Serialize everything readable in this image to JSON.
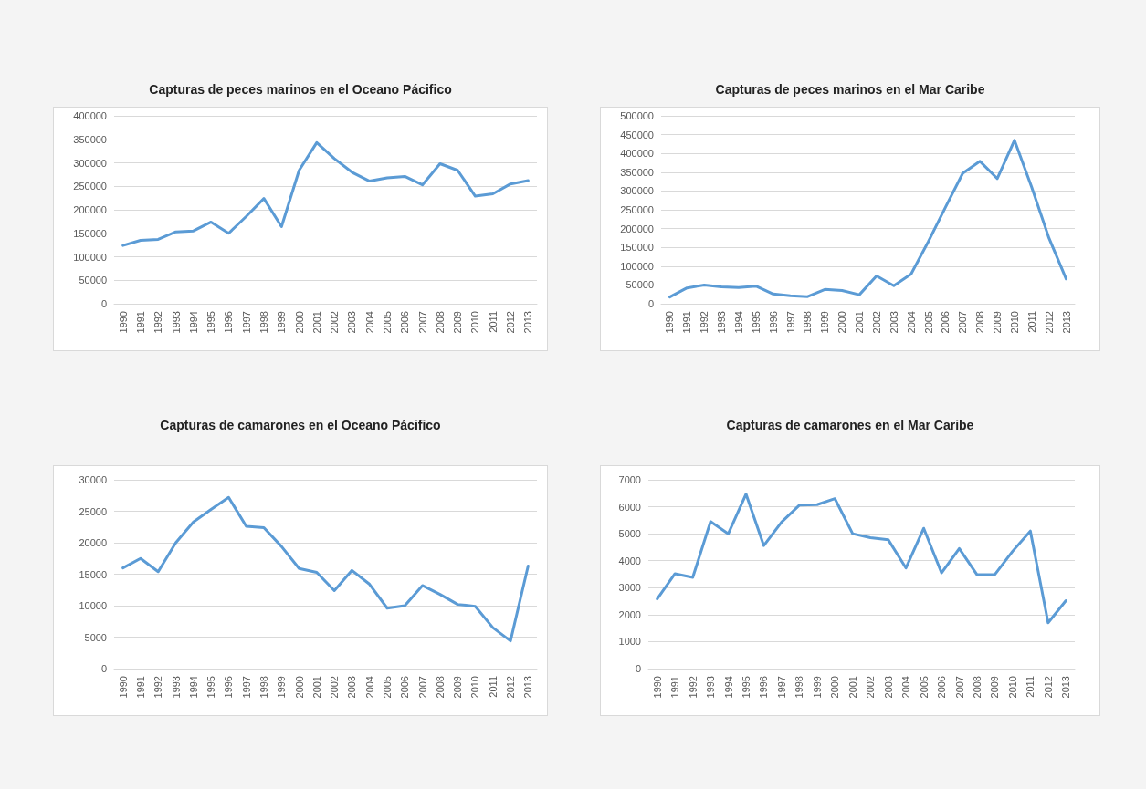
{
  "chart_data": [
    {
      "type": "line",
      "title": "Capturas de peces marinos en el Oceano Pácifico",
      "categories": [
        "1990",
        "1991",
        "1992",
        "1993",
        "1994",
        "1995",
        "1996",
        "1997",
        "1998",
        "1999",
        "2000",
        "2001",
        "2002",
        "2003",
        "2004",
        "2005",
        "2006",
        "2007",
        "2008",
        "2009",
        "2010",
        "2011",
        "2012",
        "2013"
      ],
      "series": [
        {
          "color": "#5b9bd5",
          "values": [
            124000,
            135000,
            137000,
            153000,
            155000,
            174000,
            150000,
            186000,
            224000,
            164000,
            284000,
            343000,
            309000,
            280000,
            261000,
            268000,
            271000,
            253000,
            298000,
            284000,
            229000,
            234000,
            255000,
            262000
          ]
        }
      ],
      "ylim": [
        0,
        400000
      ],
      "yticks": [
        0,
        50000,
        100000,
        150000,
        200000,
        250000,
        300000,
        350000,
        400000
      ],
      "grid": "y",
      "marker": "none",
      "line_style": "solid"
    },
    {
      "type": "line",
      "title": "Capturas de peces marinos en el Mar Caribe",
      "categories": [
        "1990",
        "1991",
        "1992",
        "1993",
        "1994",
        "1995",
        "1996",
        "1997",
        "1998",
        "1999",
        "2000",
        "2001",
        "2002",
        "2003",
        "2004",
        "2005",
        "2006",
        "2007",
        "2008",
        "2009",
        "2010",
        "2011",
        "2012",
        "2013"
      ],
      "series": [
        {
          "color": "#5b9bd5",
          "values": [
            18000,
            42000,
            50000,
            45000,
            43000,
            47000,
            26000,
            21000,
            19000,
            38000,
            35000,
            24000,
            74000,
            48000,
            79000,
            165000,
            257000,
            347000,
            379000,
            333000,
            435000,
            310000,
            175000,
            66000
          ]
        }
      ],
      "ylim": [
        0,
        500000
      ],
      "yticks": [
        0,
        50000,
        100000,
        150000,
        200000,
        250000,
        300000,
        350000,
        400000,
        450000,
        500000
      ],
      "grid": "y",
      "marker": "none",
      "line_style": "solid"
    },
    {
      "type": "line",
      "title": "Capturas de camarones en el Oceano Pácifico",
      "categories": [
        "1990",
        "1991",
        "1992",
        "1993",
        "1994",
        "1995",
        "1996",
        "1997",
        "1998",
        "1999",
        "2000",
        "2001",
        "2002",
        "2003",
        "2004",
        "2005",
        "2006",
        "2007",
        "2008",
        "2009",
        "2010",
        "2011",
        "2012",
        "2013"
      ],
      "series": [
        {
          "color": "#5b9bd5",
          "values": [
            16000,
            17500,
            15400,
            20000,
            23300,
            25300,
            27200,
            22600,
            22400,
            19400,
            15900,
            15300,
            12400,
            15600,
            13400,
            9600,
            10000,
            13200,
            11800,
            10200,
            9900,
            6500,
            4400,
            16300
          ]
        }
      ],
      "ylim": [
        0,
        30000
      ],
      "yticks": [
        0,
        5000,
        10000,
        15000,
        20000,
        25000,
        30000
      ],
      "grid": "y",
      "marker": "none",
      "line_style": "solid"
    },
    {
      "type": "line",
      "title": "Capturas de camarones en el Mar Caribe",
      "categories": [
        "1990",
        "1991",
        "1992",
        "1993",
        "1994",
        "1995",
        "1996",
        "1997",
        "1998",
        "1999",
        "2000",
        "2001",
        "2002",
        "2003",
        "2004",
        "2005",
        "2006",
        "2007",
        "2008",
        "2009",
        "2010",
        "2011",
        "2012",
        "2013"
      ],
      "series": [
        {
          "color": "#5b9bd5",
          "values": [
            2580,
            3520,
            3380,
            5450,
            5000,
            6470,
            4560,
            5430,
            6060,
            6080,
            6300,
            5000,
            4850,
            4780,
            3730,
            5200,
            3550,
            4450,
            3480,
            3490,
            4350,
            5100,
            1700,
            2520
          ]
        }
      ],
      "ylim": [
        0,
        7000
      ],
      "yticks": [
        0,
        1000,
        2000,
        3000,
        4000,
        5000,
        6000,
        7000
      ],
      "grid": "y",
      "marker": "none",
      "line_style": "solid"
    }
  ]
}
